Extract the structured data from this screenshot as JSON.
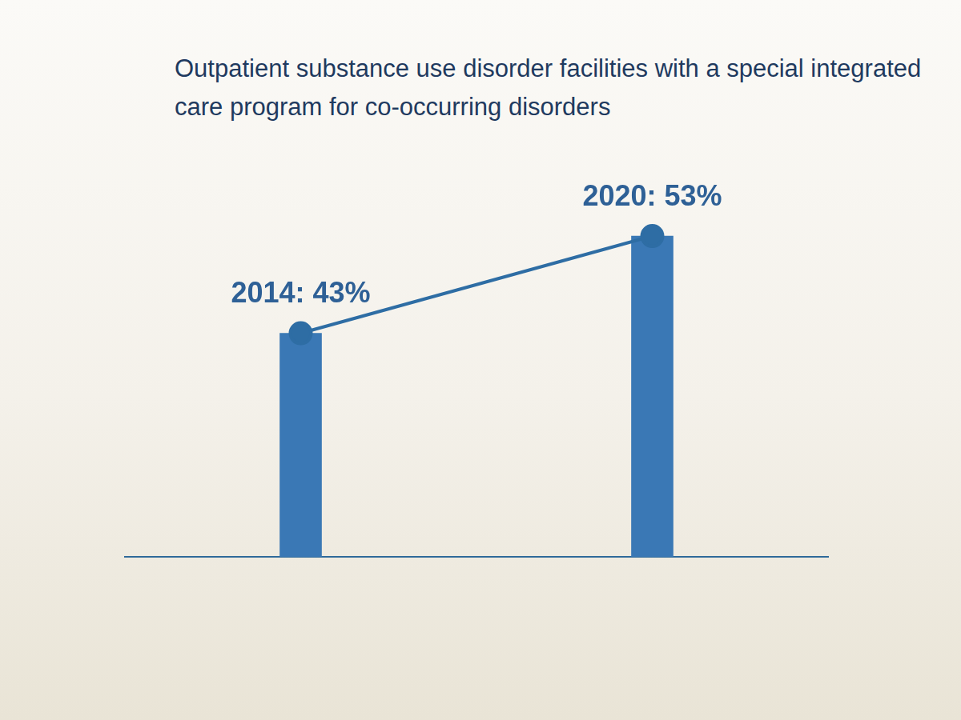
{
  "chart_data": {
    "type": "bar",
    "title": "Outpatient substance use disorder facilities with a special integrated care program for co-occurring disorders",
    "categories": [
      "2014",
      "2020"
    ],
    "values": [
      43,
      53
    ],
    "value_labels": [
      "2014: 43%",
      "2020: 53%"
    ],
    "data_labels": true,
    "color": "#3a78b5",
    "marker": "circle",
    "line_style": "solid",
    "ylim": [
      20,
      60
    ],
    "tick_labels": false,
    "grid": false
  }
}
